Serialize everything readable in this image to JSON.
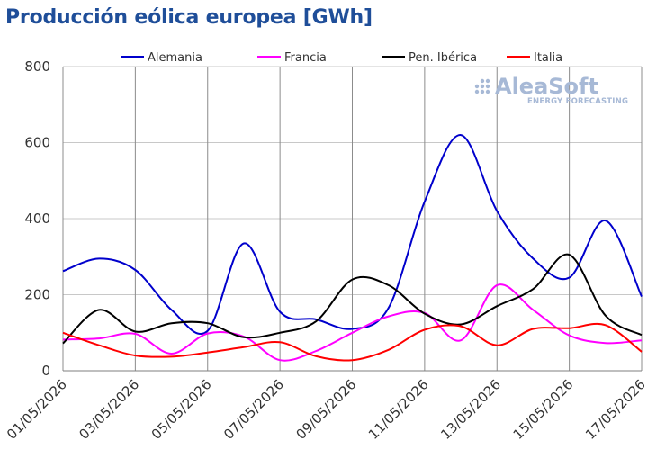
{
  "chart_data": {
    "type": "line",
    "title": "Producción eólica europea [GWh]",
    "xlabel": "",
    "ylabel": "",
    "ylim": [
      0,
      800
    ],
    "yticks": [
      0,
      200,
      400,
      600,
      800
    ],
    "x": [
      "01/05/2026",
      "02/05/2026",
      "03/05/2026",
      "04/05/2026",
      "05/05/2026",
      "06/05/2026",
      "07/05/2026",
      "08/05/2026",
      "09/05/2026",
      "10/05/2026",
      "11/05/2026",
      "12/05/2026",
      "13/05/2026",
      "14/05/2026",
      "15/05/2026",
      "16/05/2026",
      "17/05/2026"
    ],
    "xticks": [
      "01/05/2026",
      "03/05/2026",
      "05/05/2026",
      "07/05/2026",
      "09/05/2026",
      "11/05/2026",
      "13/05/2026",
      "15/05/2026",
      "17/05/2026"
    ],
    "grid": true,
    "legend_position": "top",
    "watermark": {
      "main": "AleaSoft",
      "sub": "ENERGY FORECASTING"
    },
    "series": [
      {
        "name": "Alemania",
        "color": "#0000cc",
        "values": [
          262,
          295,
          265,
          160,
          105,
          335,
          155,
          135,
          110,
          165,
          445,
          620,
          420,
          295,
          245,
          395,
          195
        ]
      },
      {
        "name": "Francia",
        "color": "#ff00ff",
        "values": [
          82,
          85,
          97,
          45,
          98,
          90,
          28,
          52,
          100,
          143,
          152,
          80,
          225,
          160,
          93,
          73,
          80
        ]
      },
      {
        "name": "Pen. Ibérica",
        "color": "#000000",
        "values": [
          72,
          160,
          103,
          125,
          125,
          88,
          100,
          130,
          240,
          225,
          150,
          122,
          170,
          215,
          305,
          145,
          94
        ]
      },
      {
        "name": "Italia",
        "color": "#ff0000",
        "values": [
          100,
          67,
          40,
          37,
          48,
          62,
          75,
          38,
          28,
          55,
          108,
          117,
          67,
          110,
          112,
          120,
          50
        ]
      }
    ]
  }
}
